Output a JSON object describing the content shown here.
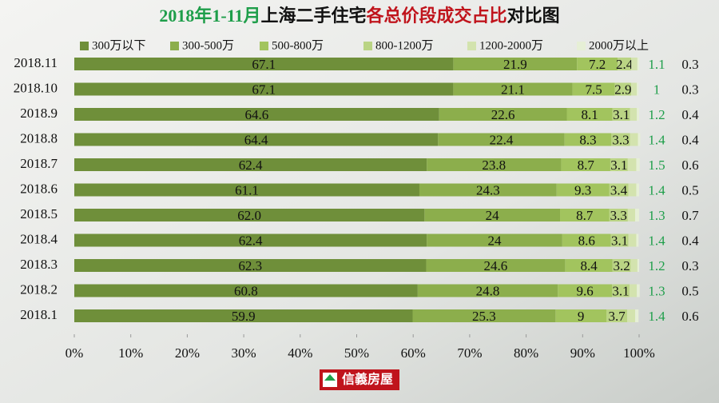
{
  "chart_data": {
    "type": "stacked_bar_horizontal",
    "title": [
      "2018年1-11月",
      "上海二手住宅",
      "各总价段成交占比",
      "对比图"
    ],
    "title_colors": [
      "#1e9e4a",
      "#111111",
      "#c0141c",
      "#111111"
    ],
    "categories": [
      "2018.11",
      "2018.10",
      "2018.9",
      "2018.8",
      "2018.7",
      "2018.6",
      "2018.5",
      "2018.4",
      "2018.3",
      "2018.2",
      "2018.1"
    ],
    "series": [
      {
        "name": "300万以下",
        "color": "#6f8f3a",
        "values": [
          67.1,
          67.1,
          64.6,
          64.4,
          62.4,
          61.1,
          62.0,
          62.4,
          62.3,
          60.8,
          59.9
        ],
        "value_labels": [
          "67.1",
          "67.1",
          "64.6",
          "64.4",
          "62.4",
          "61.1",
          "62.0",
          "62.4",
          "62.3",
          "60.8",
          "59.9"
        ]
      },
      {
        "name": "300-500万",
        "color": "#8cae4c",
        "values": [
          21.9,
          21.1,
          22.6,
          22.4,
          23.8,
          24.3,
          24.0,
          24.0,
          24.6,
          24.8,
          25.3
        ]
      },
      {
        "name": "500-800万",
        "color": "#a2c45e",
        "values": [
          7.2,
          7.5,
          8.1,
          8.3,
          8.7,
          9.3,
          8.7,
          8.6,
          8.4,
          9.6,
          9.0
        ]
      },
      {
        "name": "800-1200万",
        "color": "#bad484",
        "values": [
          2.4,
          2.9,
          3.1,
          3.3,
          3.1,
          3.4,
          3.3,
          3.1,
          3.2,
          3.1,
          3.7
        ]
      },
      {
        "name": "1200-2000万",
        "color": "#d3e3ae",
        "values": [
          1.1,
          1.0,
          1.2,
          1.4,
          1.5,
          1.4,
          1.3,
          1.4,
          1.2,
          1.3,
          1.4
        ]
      },
      {
        "name": "2000万以上",
        "color": "#e6efd6",
        "values": [
          0.3,
          0.3,
          0.4,
          0.4,
          0.6,
          0.5,
          0.7,
          0.4,
          0.3,
          0.5,
          0.6
        ]
      }
    ],
    "xlim": [
      0,
      100
    ],
    "xticks": [
      {
        "value": 0,
        "label": "0%"
      },
      {
        "value": 10,
        "label": "10%"
      },
      {
        "value": 20,
        "label": "20%"
      },
      {
        "value": 30,
        "label": "30%"
      },
      {
        "value": 40,
        "label": "40%"
      },
      {
        "value": 50,
        "label": "50%"
      },
      {
        "value": 60,
        "label": "60%"
      },
      {
        "value": 70,
        "label": "70%"
      },
      {
        "value": 80,
        "label": "80%"
      },
      {
        "value": 90,
        "label": "90%"
      },
      {
        "value": 100,
        "label": "100%"
      }
    ],
    "logo_text": "信義房屋"
  }
}
